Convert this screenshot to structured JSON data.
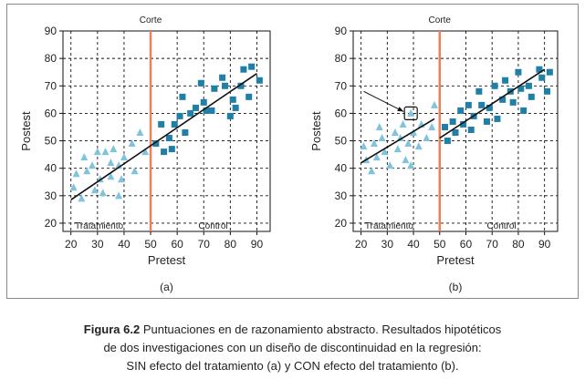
{
  "caption": {
    "label": "Figura 6.2",
    "line1": "Puntuaciones en   de razonamiento abstracto. Resultados hipotéticos",
    "line2": "de dos investigaciones con un diseño de discontinuidad en la regresión:",
    "line3": "SIN efecto del tratamiento (a) y CON efecto del tratamiento (b)."
  },
  "colors": {
    "treatment": "#7fc3dc",
    "control": "#1f7fa6",
    "cutoff": "#e8825a",
    "line": "#111111",
    "grid": "#111111"
  },
  "chart_data": [
    {
      "type": "scatter",
      "panel_label": "(a)",
      "title": "Corte",
      "xlabel": "Pretest",
      "ylabel": "Postest",
      "xlim": [
        17,
        95
      ],
      "ylim": [
        17,
        90
      ],
      "xticks": [
        20,
        30,
        40,
        50,
        60,
        70,
        80,
        90
      ],
      "yticks": [
        20,
        30,
        40,
        50,
        60,
        70,
        80,
        90
      ],
      "grid": true,
      "cutoff": 50,
      "group_labels": {
        "treatment": "Tratamiento",
        "control": "Control"
      },
      "series": [
        {
          "name": "Tratamiento",
          "marker": "triangle",
          "points": [
            [
              21,
              33
            ],
            [
              22,
              38
            ],
            [
              24,
              29
            ],
            [
              25,
              44
            ],
            [
              26,
              39
            ],
            [
              28,
              41
            ],
            [
              29,
              32
            ],
            [
              30,
              46
            ],
            [
              31,
              36
            ],
            [
              32,
              31
            ],
            [
              33,
              46
            ],
            [
              35,
              42
            ],
            [
              35,
              37
            ],
            [
              36,
              47
            ],
            [
              38,
              41
            ],
            [
              38,
              30
            ],
            [
              39,
              36
            ],
            [
              40,
              44
            ],
            [
              43,
              49
            ],
            [
              44,
              39
            ],
            [
              46,
              53
            ],
            [
              48,
              46
            ]
          ]
        },
        {
          "name": "Control",
          "marker": "square",
          "points": [
            [
              52,
              49
            ],
            [
              54,
              56
            ],
            [
              55,
              46
            ],
            [
              57,
              51
            ],
            [
              58,
              47
            ],
            [
              59,
              56
            ],
            [
              61,
              59
            ],
            [
              62,
              66
            ],
            [
              63,
              53
            ],
            [
              65,
              60
            ],
            [
              67,
              62
            ],
            [
              69,
              71
            ],
            [
              70,
              64
            ],
            [
              71,
              61
            ],
            [
              73,
              61
            ],
            [
              74,
              69
            ],
            [
              77,
              73
            ],
            [
              78,
              70
            ],
            [
              80,
              59
            ],
            [
              81,
              65
            ],
            [
              82,
              62
            ],
            [
              84,
              70
            ],
            [
              85,
              76
            ],
            [
              87,
              66
            ],
            [
              88,
              77
            ],
            [
              91,
              72
            ]
          ]
        }
      ],
      "regression": [
        {
          "x": [
            20,
            90
          ],
          "y": [
            28.5,
            74.5
          ]
        }
      ]
    },
    {
      "type": "scatter",
      "panel_label": "(b)",
      "title": "Corte",
      "xlabel": "Pretest",
      "ylabel": "Postest",
      "xlim": [
        17,
        95
      ],
      "ylim": [
        17,
        90
      ],
      "xticks": [
        20,
        30,
        40,
        50,
        60,
        70,
        80,
        90
      ],
      "yticks": [
        20,
        30,
        40,
        50,
        60,
        70,
        80,
        90
      ],
      "grid": true,
      "cutoff": 50,
      "group_labels": {
        "treatment": "Tratamiento",
        "control": "Control"
      },
      "highlight": {
        "point": [
          39,
          60
        ],
        "arrow_from": [
          21,
          68
        ]
      },
      "series": [
        {
          "name": "Tratamiento",
          "marker": "triangle",
          "points": [
            [
              21,
              48
            ],
            [
              22,
              43
            ],
            [
              24,
              39
            ],
            [
              25,
              49
            ],
            [
              26,
              44
            ],
            [
              27,
              55
            ],
            [
              28,
              51
            ],
            [
              29,
              46
            ],
            [
              31,
              41
            ],
            [
              33,
              53
            ],
            [
              34,
              47
            ],
            [
              35,
              51
            ],
            [
              36,
              56
            ],
            [
              37,
              43
            ],
            [
              38,
              49
            ],
            [
              39,
              41
            ],
            [
              39,
              60
            ],
            [
              40,
              53
            ],
            [
              42,
              48
            ],
            [
              43,
              56
            ],
            [
              45,
              51
            ],
            [
              47,
              55
            ],
            [
              48,
              63
            ]
          ]
        },
        {
          "name": "Control",
          "marker": "square",
          "points": [
            [
              52,
              55
            ],
            [
              53,
              50
            ],
            [
              55,
              57
            ],
            [
              56,
              53
            ],
            [
              58,
              61
            ],
            [
              59,
              56
            ],
            [
              61,
              63
            ],
            [
              62,
              54
            ],
            [
              63,
              59
            ],
            [
              65,
              68
            ],
            [
              66,
              63
            ],
            [
              68,
              57
            ],
            [
              69,
              62
            ],
            [
              71,
              70
            ],
            [
              72,
              58
            ],
            [
              74,
              65
            ],
            [
              75,
              72
            ],
            [
              77,
              68
            ],
            [
              78,
              64
            ],
            [
              80,
              75
            ],
            [
              81,
              69
            ],
            [
              82,
              61
            ],
            [
              84,
              70
            ],
            [
              85,
              66
            ],
            [
              88,
              76
            ],
            [
              89,
              73
            ],
            [
              91,
              68
            ],
            [
              92,
              75
            ]
          ]
        }
      ],
      "regression": [
        {
          "x": [
            20,
            48
          ],
          "y": [
            42,
            58
          ]
        },
        {
          "x": [
            50,
            90
          ],
          "y": [
            51,
            76
          ]
        }
      ]
    }
  ]
}
